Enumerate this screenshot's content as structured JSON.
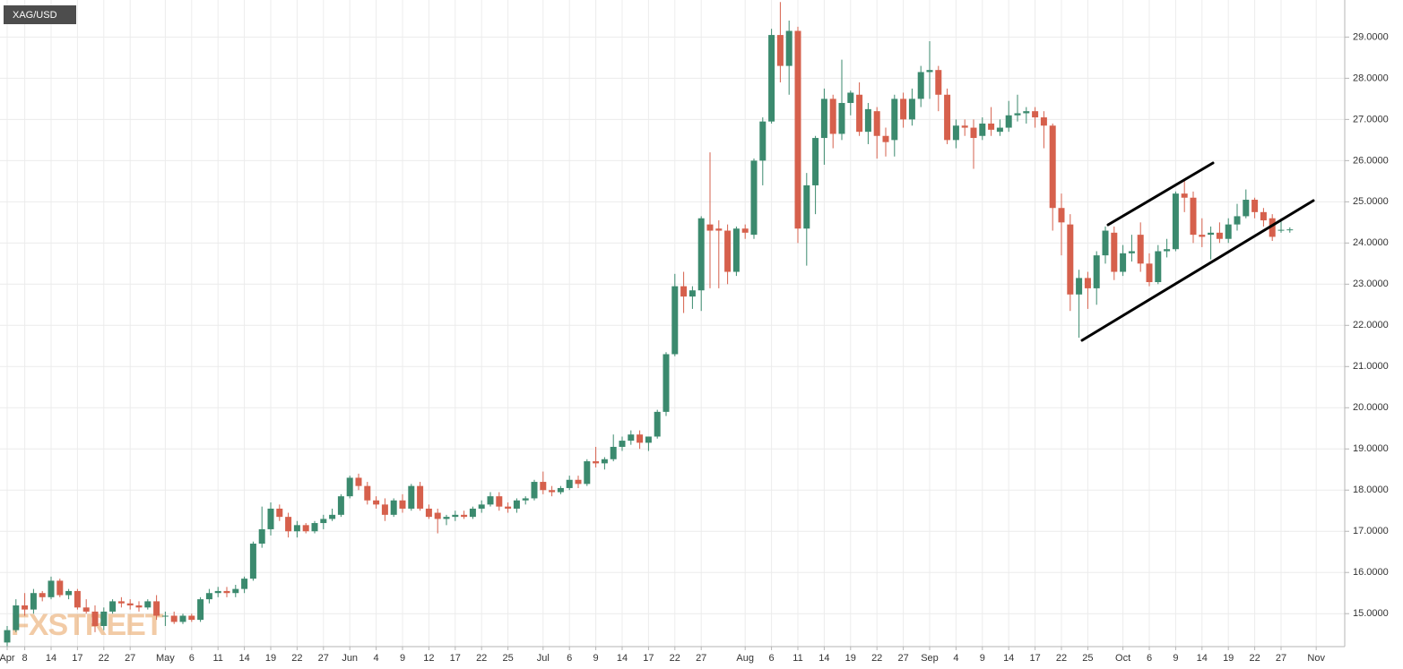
{
  "chart_data": {
    "type": "candlestick",
    "title": "XAG/USD",
    "watermark": "FXSTREET",
    "categories": [
      "Apr",
      null,
      "8",
      null,
      null,
      "14",
      null,
      null,
      "17",
      null,
      null,
      "22",
      null,
      null,
      "27",
      null,
      null,
      null,
      "May",
      null,
      null,
      "6",
      null,
      null,
      "11",
      null,
      null,
      "14",
      null,
      null,
      "19",
      null,
      null,
      "22",
      null,
      null,
      "27",
      null,
      null,
      "Jun",
      null,
      null,
      "4",
      null,
      null,
      "9",
      null,
      null,
      "12",
      null,
      null,
      "17",
      null,
      null,
      "22",
      null,
      null,
      "25",
      null,
      null,
      null,
      "Jul",
      null,
      null,
      "6",
      null,
      null,
      "9",
      null,
      null,
      "14",
      null,
      null,
      "17",
      null,
      null,
      "22",
      null,
      null,
      "27",
      null,
      null,
      null,
      null,
      "Aug",
      null,
      null,
      "6",
      null,
      null,
      "11",
      null,
      null,
      "14",
      null,
      null,
      "19",
      null,
      null,
      "22",
      null,
      null,
      "27",
      null,
      null,
      "Sep",
      null,
      null,
      "4",
      null,
      null,
      "9",
      null,
      null,
      "14",
      null,
      null,
      "17",
      null,
      null,
      "22",
      null,
      null,
      "25",
      null,
      null,
      null,
      "Oct",
      null,
      null,
      "6",
      null,
      null,
      "9",
      null,
      null,
      "14",
      null,
      null,
      "19",
      null,
      null,
      "22",
      null,
      null,
      "27",
      null,
      null,
      null,
      "Nov"
    ],
    "open": [
      14.3,
      14.6,
      15.2,
      15.1,
      15.5,
      15.4,
      15.8,
      15.45,
      15.55,
      15.15,
      15.05,
      14.7,
      15.05,
      15.3,
      15.25,
      15.2,
      15.15,
      15.3,
      14.95,
      14.95,
      14.8,
      14.95,
      14.85,
      15.35,
      15.5,
      15.55,
      15.5,
      15.6,
      15.85,
      16.7,
      17.05,
      17.55,
      17.35,
      17.0,
      17.15,
      17.0,
      17.2,
      17.3,
      17.4,
      17.85,
      18.3,
      18.1,
      17.75,
      17.65,
      17.4,
      17.75,
      17.55,
      18.1,
      17.55,
      17.45,
      17.3,
      17.35,
      17.4,
      17.35,
      17.55,
      17.65,
      17.85,
      17.6,
      17.55,
      17.75,
      17.8,
      18.2,
      18.0,
      17.95,
      18.05,
      18.25,
      18.15,
      18.7,
      18.65,
      18.75,
      19.05,
      19.2,
      19.35,
      19.15,
      19.3,
      19.9,
      21.3,
      22.95,
      22.7,
      22.85,
      24.45,
      24.35,
      24.3,
      23.3,
      24.35,
      24.2,
      26.0,
      26.95,
      29.05,
      28.3,
      29.15,
      24.35,
      25.4,
      26.55,
      27.5,
      26.65,
      27.4,
      27.6,
      26.7,
      27.2,
      26.6,
      26.5,
      27.5,
      27.0,
      27.5,
      28.15,
      28.2,
      27.6,
      26.5,
      26.85,
      26.8,
      26.6,
      26.9,
      26.7,
      26.8,
      27.1,
      27.15,
      27.2,
      27.05,
      26.85,
      24.85,
      24.45,
      22.75,
      23.15,
      22.9,
      23.7,
      24.25,
      23.3,
      23.75,
      24.2,
      23.5,
      23.05,
      23.8,
      23.85,
      25.2,
      25.1,
      24.2,
      24.2,
      24.25,
      24.1,
      24.45,
      24.65,
      25.05,
      24.75,
      24.6,
      24.3,
      24.32,
      null,
      null,
      null
    ],
    "high": [
      14.7,
      15.35,
      15.5,
      15.6,
      15.55,
      15.9,
      15.85,
      15.6,
      15.6,
      15.35,
      15.2,
      15.15,
      15.35,
      15.4,
      15.35,
      15.3,
      15.35,
      15.45,
      15.05,
      15.05,
      15.0,
      15.0,
      15.4,
      15.6,
      15.65,
      15.65,
      15.7,
      15.9,
      16.75,
      17.6,
      17.7,
      17.65,
      17.45,
      17.25,
      17.2,
      17.25,
      17.4,
      17.55,
      17.9,
      18.35,
      18.4,
      18.2,
      17.85,
      17.8,
      17.8,
      17.9,
      18.15,
      18.2,
      17.65,
      17.55,
      17.4,
      17.5,
      17.5,
      17.6,
      17.75,
      17.95,
      17.95,
      17.7,
      17.8,
      17.85,
      18.25,
      18.45,
      18.1,
      18.1,
      18.35,
      18.35,
      18.75,
      19.05,
      18.8,
      19.35,
      19.3,
      19.45,
      19.45,
      19.3,
      19.95,
      21.35,
      23.25,
      23.3,
      22.95,
      24.65,
      26.2,
      24.55,
      24.45,
      24.4,
      24.45,
      26.05,
      27.05,
      29.2,
      29.85,
      29.4,
      29.25,
      25.7,
      26.6,
      27.75,
      27.6,
      28.45,
      27.7,
      27.9,
      27.4,
      27.3,
      26.8,
      27.6,
      27.65,
      27.75,
      28.3,
      28.9,
      28.3,
      27.75,
      27.0,
      27.0,
      27.0,
      27.05,
      27.3,
      27.0,
      27.45,
      27.6,
      27.3,
      27.3,
      27.2,
      26.9,
      25.2,
      24.7,
      23.35,
      23.3,
      23.8,
      24.4,
      24.4,
      23.95,
      24.2,
      24.5,
      23.75,
      23.95,
      24.1,
      25.25,
      25.55,
      25.25,
      24.6,
      24.4,
      24.5,
      24.6,
      24.95,
      25.3,
      25.1,
      24.85,
      24.7,
      24.6,
      24.38,
      null,
      null,
      null
    ],
    "low": [
      14.2,
      14.55,
      14.95,
      15.0,
      15.3,
      15.35,
      15.4,
      15.35,
      15.1,
      15.0,
      14.55,
      14.6,
      15.0,
      15.15,
      15.1,
      15.05,
      15.1,
      14.85,
      14.7,
      14.75,
      14.75,
      14.8,
      14.8,
      15.25,
      15.4,
      15.4,
      15.4,
      15.5,
      15.8,
      16.6,
      16.9,
      17.25,
      16.85,
      16.85,
      16.95,
      16.95,
      17.05,
      17.25,
      17.35,
      17.8,
      18.0,
      17.65,
      17.55,
      17.25,
      17.35,
      17.45,
      17.5,
      17.5,
      17.3,
      16.95,
      17.15,
      17.25,
      17.3,
      17.3,
      17.45,
      17.6,
      17.5,
      17.45,
      17.45,
      17.65,
      17.75,
      17.9,
      17.85,
      17.9,
      18.0,
      18.05,
      18.1,
      18.55,
      18.5,
      18.7,
      18.95,
      19.1,
      19.0,
      18.95,
      19.25,
      19.8,
      21.25,
      22.3,
      22.4,
      22.35,
      22.9,
      22.9,
      23.0,
      23.2,
      24.1,
      24.1,
      25.4,
      26.9,
      27.9,
      27.6,
      24.0,
      23.45,
      24.7,
      25.9,
      26.3,
      26.5,
      27.1,
      26.6,
      26.4,
      26.05,
      26.1,
      26.1,
      26.8,
      26.85,
      27.3,
      27.5,
      27.2,
      26.4,
      26.3,
      26.6,
      25.8,
      26.5,
      26.6,
      26.6,
      26.7,
      26.95,
      26.9,
      26.8,
      26.3,
      24.3,
      23.7,
      22.35,
      21.7,
      22.4,
      22.5,
      23.5,
      23.1,
      23.2,
      23.55,
      23.3,
      22.95,
      23.0,
      23.65,
      23.8,
      24.75,
      24.0,
      23.9,
      23.6,
      24.0,
      24.0,
      24.3,
      24.6,
      24.6,
      24.4,
      24.05,
      24.25,
      24.25,
      null,
      null,
      null
    ],
    "close": [
      14.6,
      15.2,
      15.1,
      15.5,
      15.4,
      15.8,
      15.45,
      15.55,
      15.15,
      15.05,
      14.7,
      15.05,
      15.3,
      15.25,
      15.2,
      15.15,
      15.3,
      14.95,
      14.95,
      14.8,
      14.95,
      14.85,
      15.35,
      15.5,
      15.55,
      15.5,
      15.6,
      15.85,
      16.7,
      17.05,
      17.55,
      17.35,
      17.0,
      17.15,
      17.0,
      17.2,
      17.3,
      17.4,
      17.85,
      18.3,
      18.1,
      17.75,
      17.65,
      17.4,
      17.75,
      17.55,
      18.1,
      17.55,
      17.35,
      17.3,
      17.35,
      17.4,
      17.35,
      17.55,
      17.65,
      17.85,
      17.6,
      17.55,
      17.75,
      17.8,
      18.2,
      18.0,
      17.95,
      18.05,
      18.25,
      18.15,
      18.7,
      18.65,
      18.75,
      19.05,
      19.2,
      19.35,
      19.15,
      19.3,
      19.9,
      21.3,
      22.95,
      22.7,
      22.85,
      24.6,
      24.3,
      24.3,
      23.3,
      24.35,
      24.25,
      26.0,
      26.95,
      29.05,
      28.3,
      29.15,
      24.35,
      25.4,
      26.55,
      27.5,
      26.65,
      27.4,
      27.65,
      26.7,
      27.25,
      26.6,
      26.45,
      27.5,
      27.0,
      27.5,
      28.15,
      28.2,
      27.6,
      26.5,
      26.85,
      26.8,
      26.55,
      26.9,
      26.75,
      26.8,
      27.1,
      27.15,
      27.2,
      27.05,
      26.85,
      24.85,
      24.5,
      22.75,
      23.15,
      22.9,
      23.7,
      24.3,
      23.3,
      23.75,
      23.8,
      23.5,
      23.05,
      23.8,
      23.85,
      25.2,
      25.1,
      24.2,
      24.15,
      24.25,
      24.1,
      24.45,
      24.65,
      25.05,
      24.75,
      24.55,
      24.15,
      24.32,
      24.33,
      null,
      null,
      null
    ],
    "up_color": "#3b8a6e",
    "down_color": "#d6604c",
    "ylim": [
      14.2,
      29.9
    ],
    "yticks": [
      {
        "value": 15,
        "label": "15.0000"
      },
      {
        "value": 16,
        "label": "16.0000"
      },
      {
        "value": 17,
        "label": "17.0000"
      },
      {
        "value": 18,
        "label": "18.0000"
      },
      {
        "value": 19,
        "label": "19.0000"
      },
      {
        "value": 20,
        "label": "20.0000"
      },
      {
        "value": 21,
        "label": "21.0000"
      },
      {
        "value": 22,
        "label": "22.0000"
      },
      {
        "value": 23,
        "label": "23.0000"
      },
      {
        "value": 24,
        "label": "24.0000"
      },
      {
        "value": 25,
        "label": "25.0000"
      },
      {
        "value": 26,
        "label": "26.0000"
      },
      {
        "value": 27,
        "label": "27.0000"
      },
      {
        "value": 28,
        "label": "28.0000"
      },
      {
        "value": 29,
        "label": "29.0000"
      }
    ],
    "grid": true
  }
}
